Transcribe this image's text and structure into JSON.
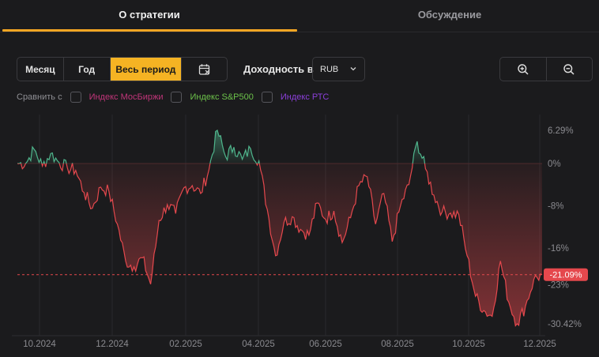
{
  "tabs": [
    {
      "label": "О стратегии",
      "active": true
    },
    {
      "label": "Обсуждение",
      "active": false
    }
  ],
  "period": {
    "options": [
      "Месяц",
      "Год",
      "Весь период"
    ],
    "selected": "Весь период"
  },
  "yield": {
    "label": "Доходность в",
    "currency": "RUB"
  },
  "compare": {
    "label": "Сравнить с",
    "indices": [
      {
        "label": "Индекс МосБиржи",
        "color": "#c2357a"
      },
      {
        "label": "Индекс S&P500",
        "color": "#6cc24a"
      },
      {
        "label": "Индекс РТС",
        "color": "#8b3fd9"
      }
    ]
  },
  "icons": {
    "calendar": "calendar-icon",
    "zoom_in": "zoom-in-icon",
    "zoom_out": "zoom-out-icon",
    "dropdown": "chevron-down-icon"
  },
  "colors": {
    "accent": "#f5a623",
    "positive": "#4fb58c",
    "negative": "#e5484d",
    "background": "#1b1b1d"
  },
  "chart_data": {
    "type": "area",
    "y_unit": "%",
    "yticks": [
      "6.29%",
      "0%",
      "-8%",
      "-16%",
      "-23%",
      "-30.42%"
    ],
    "ylim": [
      -30.42,
      6.29
    ],
    "xticks": [
      "10.2024",
      "12.2024",
      "02.2025",
      "04.2025",
      "06.2025",
      "08.2025",
      "10.2025",
      "12.2025"
    ],
    "current_value": "-21.09%",
    "series": [
      {
        "x": [
          "09.2024",
          "09.2024",
          "10.2024",
          "10.2024",
          "10.2024",
          "10.2024",
          "10.2024",
          "11.2024",
          "11.2024",
          "11.2024",
          "11.2024",
          "11.2024",
          "12.2024",
          "12.2024",
          "12.2024",
          "12.2024",
          "12.2024",
          "01.2025",
          "01.2025",
          "01.2025",
          "01.2025",
          "02.2025",
          "02.2025",
          "02.2025",
          "02.2025",
          "03.2025",
          "03.2025",
          "03.2025",
          "03.2025",
          "03.2025",
          "04.2025",
          "04.2025",
          "04.2025",
          "04.2025",
          "05.2025",
          "05.2025",
          "05.2025",
          "05.2025",
          "06.2025",
          "06.2025",
          "06.2025",
          "06.2025",
          "07.2025",
          "07.2025",
          "07.2025",
          "07.2025",
          "08.2025",
          "08.2025",
          "08.2025",
          "08.2025",
          "09.2025",
          "09.2025",
          "09.2025",
          "09.2025",
          "10.2025",
          "10.2025",
          "10.2025",
          "10.2025",
          "11.2025",
          "11.2025",
          "11.2025",
          "11.2025",
          "12.2025",
          "12.2025"
        ],
        "y": [
          0,
          0,
          2.7,
          -0.5,
          1.9,
          0.2,
          -0.8,
          -1.3,
          -5.5,
          -8.5,
          -4.5,
          -5.3,
          -11.5,
          -18.5,
          -19.6,
          -17.9,
          -22.9,
          -10.8,
          -7.8,
          -9.5,
          -4.6,
          -4.2,
          -5.7,
          -1.2,
          6.3,
          1.3,
          3.1,
          0.8,
          2.8,
          0.5,
          -8.7,
          -17.5,
          -11.2,
          -10.1,
          -12.5,
          -13.6,
          -7.5,
          -10.6,
          -9.0,
          -15.0,
          -10.3,
          -4.2,
          -2.5,
          -11.5,
          -5.7,
          -14.8,
          -8.0,
          -4.0,
          4.2,
          -1.0,
          -6.0,
          -9.2,
          -9.4,
          -9.7,
          -17.5,
          -25.2,
          -27.9,
          -29.0,
          -18.5,
          -26.3,
          -30.4,
          -27.1,
          -22.0,
          -21.1
        ],
        "color_positive": "#4fb58c",
        "color_negative": "#e5484d"
      }
    ],
    "grid": "vertical",
    "legend": "none"
  }
}
